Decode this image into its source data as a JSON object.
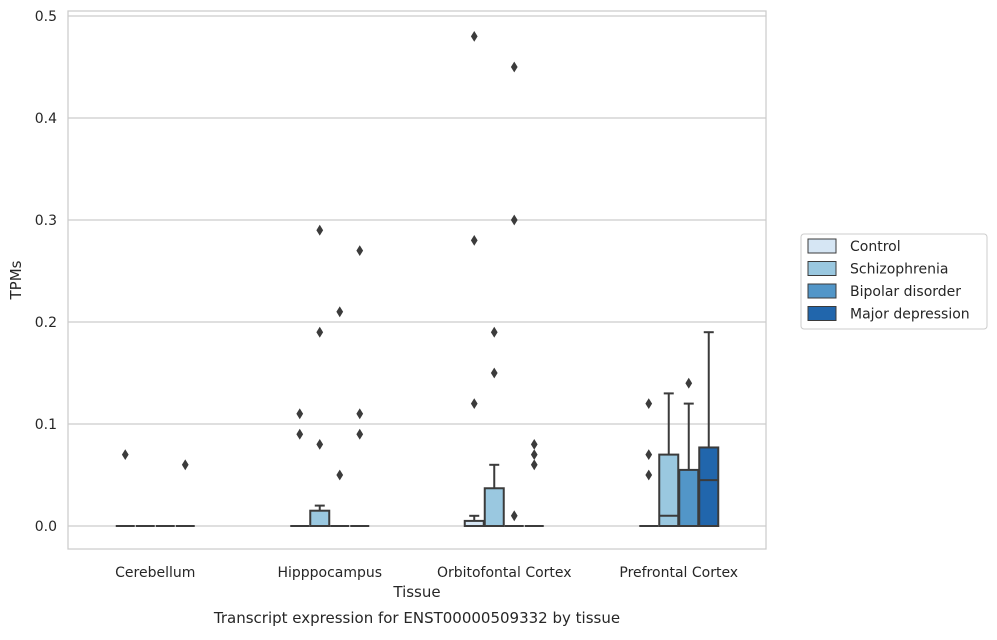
{
  "chart_data": {
    "type": "boxplot",
    "title": "Transcript expression for ENST00000509332 by tissue",
    "xlabel": "Tissue",
    "ylabel": "TPMs",
    "ylim": [
      -0.023,
      0.505
    ],
    "yticks": [
      0.0,
      0.1,
      0.2,
      0.3,
      0.4,
      0.5
    ],
    "ytick_labels": [
      "0.0",
      "0.1",
      "0.2",
      "0.3",
      "0.4",
      "0.5"
    ],
    "grid": "horizontal",
    "legend": "right",
    "categories": [
      "Cerebellum",
      "Hipppocampus",
      "Orbitofontal Cortex",
      "Prefrontal Cortex"
    ],
    "series": [
      {
        "name": "Control",
        "color": "#d6e6f4",
        "boxes": [
          {
            "q1": 0,
            "median": 0,
            "q3": 0,
            "whislo": 0,
            "whishi": 0,
            "fliers": [
              0.07
            ]
          },
          {
            "q1": 0,
            "median": 0,
            "q3": 0,
            "whislo": 0,
            "whishi": 0,
            "fliers": [
              0.11,
              0.09
            ]
          },
          {
            "q1": 0,
            "median": 0,
            "q3": 0.005,
            "whislo": 0,
            "whishi": 0.01,
            "fliers": [
              0.28,
              0.12,
              0.48
            ]
          },
          {
            "q1": 0,
            "median": 0,
            "q3": 0,
            "whislo": 0,
            "whishi": 0,
            "fliers": [
              0.12,
              0.07,
              0.05
            ]
          }
        ]
      },
      {
        "name": "Schizophrenia",
        "color": "#9ac8e0",
        "boxes": [
          {
            "q1": 0,
            "median": 0,
            "q3": 0,
            "whislo": 0,
            "whishi": 0,
            "fliers": []
          },
          {
            "q1": 0,
            "median": 0,
            "q3": 0.015,
            "whislo": 0,
            "whishi": 0.02,
            "fliers": [
              0.29,
              0.19,
              0.08
            ]
          },
          {
            "q1": 0,
            "median": 0,
            "q3": 0.037,
            "whislo": 0,
            "whishi": 0.06,
            "fliers": [
              0.19,
              0.15
            ]
          },
          {
            "q1": 0,
            "median": 0.01,
            "q3": 0.07,
            "whislo": 0,
            "whishi": 0.13,
            "fliers": []
          }
        ]
      },
      {
        "name": "Bipolar disorder",
        "color": "#5296c8",
        "boxes": [
          {
            "q1": 0,
            "median": 0,
            "q3": 0,
            "whislo": 0,
            "whishi": 0,
            "fliers": []
          },
          {
            "q1": 0,
            "median": 0,
            "q3": 0,
            "whislo": 0,
            "whishi": 0,
            "fliers": [
              0.21,
              0.05
            ]
          },
          {
            "q1": 0,
            "median": 0,
            "q3": 0,
            "whislo": 0,
            "whishi": 0,
            "fliers": [
              0.45,
              0.3,
              0.01
            ]
          },
          {
            "q1": 0,
            "median": 0,
            "q3": 0.055,
            "whislo": 0,
            "whishi": 0.12,
            "fliers": [
              0.14
            ]
          }
        ]
      },
      {
        "name": "Major depression",
        "color": "#2166ac",
        "boxes": [
          {
            "q1": 0,
            "median": 0,
            "q3": 0,
            "whislo": 0,
            "whishi": 0,
            "fliers": [
              0.06
            ]
          },
          {
            "q1": 0,
            "median": 0,
            "q3": 0,
            "whislo": 0,
            "whishi": 0,
            "fliers": [
              0.27,
              0.11,
              0.09
            ]
          },
          {
            "q1": 0,
            "median": 0,
            "q3": 0,
            "whislo": 0,
            "whishi": 0,
            "fliers": [
              0.08,
              0.07,
              0.06
            ]
          },
          {
            "q1": 0,
            "median": 0.045,
            "q3": 0.077,
            "whislo": 0,
            "whishi": 0.19,
            "fliers": []
          }
        ]
      }
    ]
  }
}
